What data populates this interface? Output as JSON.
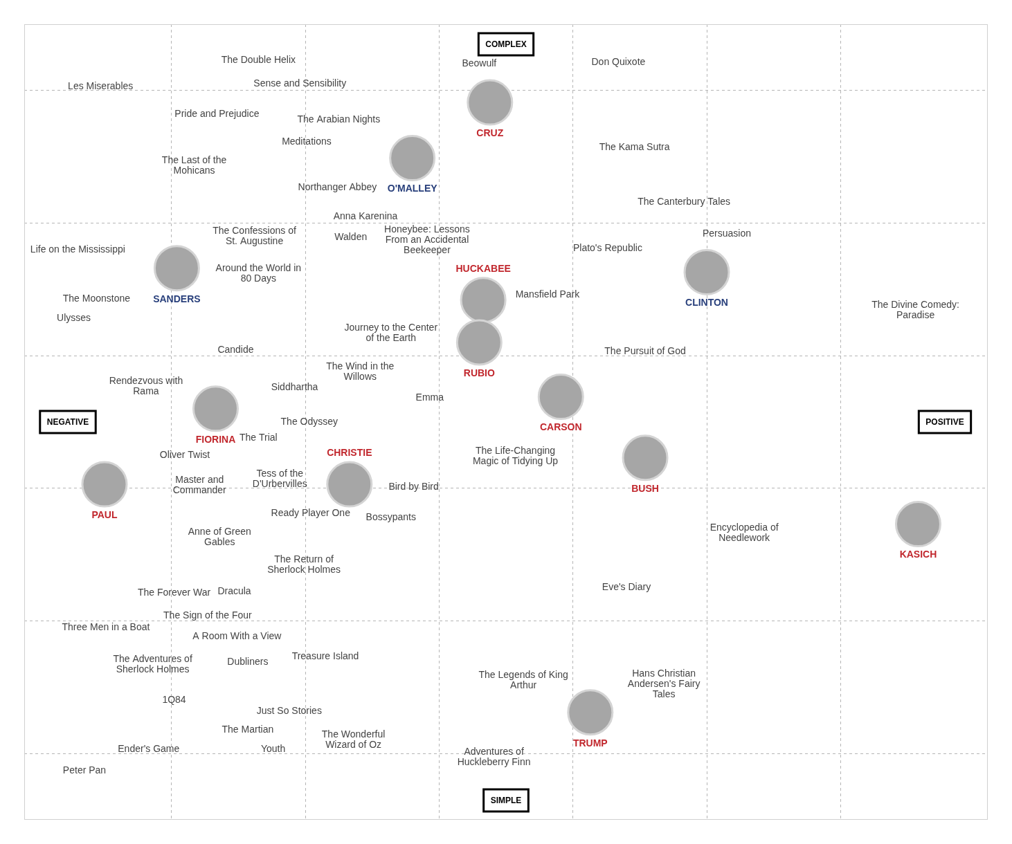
{
  "chart_data": {
    "type": "scatter",
    "xlabel": {
      "low": "NEGATIVE",
      "high": "POSITIVE"
    },
    "ylabel": {
      "low": "SIMPLE",
      "high": "COMPLEX"
    },
    "xlim": [
      -0.1,
      7.1
    ],
    "ylim": [
      0.5,
      6.5
    ],
    "xticks": [
      1,
      2,
      3,
      4,
      5,
      6
    ],
    "yticks": [
      1,
      2,
      3,
      4,
      5,
      6
    ],
    "grid": true,
    "tick_labels": false,
    "series": [
      {
        "color": "#444444",
        "marker": "none",
        "labels": [
          "The Double Helix",
          "Les Miserables",
          "Sense and Sensibility",
          "Pride and Prejudice",
          "The Arabian Nights",
          "Meditations",
          "The Last of the Mohicans",
          "Northanger Abbey",
          "Beowulf",
          "Don Quixote",
          "The Kama Sutra",
          "The Canterbury Tales",
          "Anna Karenina",
          "The Confessions of St. Augustine",
          "Walden",
          "Honeybee: Lessons From an Accidental Beekeeper",
          "Persuasion",
          "Plato's Republic",
          "Life on the Mississippi",
          "Around the World in 80 Days",
          "Mansfield Park",
          "The Moonstone",
          "Ulysses",
          "The Divine Comedy: Paradise",
          "Journey to the Center of the Earth",
          "Candide",
          "The Pursuit of God",
          "The Wind in the Willows",
          "Rendezvous with Rama",
          "Siddhartha",
          "Emma",
          "The Odyssey",
          "The Trial",
          "Oliver Twist",
          "The Life-Changing Magic of Tidying Up",
          "Master and Commander",
          "Tess of the D'Urbervilles",
          "Bird by Bird",
          "Ready Player One",
          "Bossypants",
          "Anne of Green Gables",
          "Encyclopedia of Needlework",
          "The Return of Sherlock Holmes",
          "Eve's Diary",
          "The Forever War",
          "Dracula",
          "The Sign of the Four",
          "Three Men in a Boat",
          "A Room With a View",
          "Treasure Island",
          "The Adventures of Sherlock Holmes",
          "Dubliners",
          "The Legends of King Arthur",
          "Hans Christian Andersen's Fairy Tales",
          "1Q84",
          "Just So Stories",
          "The Martian",
          "The Wonderful Wizard of Oz",
          "Ender's Game",
          "Youth",
          "Adventures of Huckleberry Finn",
          "Peter Pan"
        ],
        "x": [
          1.65,
          0.47,
          1.96,
          1.34,
          2.25,
          2.01,
          1.17,
          2.24,
          3.3,
          4.34,
          4.46,
          4.83,
          2.45,
          1.62,
          2.34,
          2.91,
          5.15,
          4.26,
          0.3,
          1.65,
          3.81,
          0.44,
          0.27,
          6.56,
          2.64,
          1.48,
          4.54,
          2.41,
          0.81,
          1.92,
          2.93,
          2.03,
          1.65,
          1.1,
          3.57,
          1.21,
          1.81,
          2.81,
          2.04,
          2.64,
          1.36,
          5.28,
          1.99,
          4.4,
          1.02,
          1.47,
          1.27,
          0.51,
          1.49,
          2.15,
          0.86,
          1.57,
          3.63,
          4.68,
          1.02,
          1.88,
          1.57,
          2.36,
          0.83,
          1.76,
          3.41,
          0.35
        ],
        "y": [
          6.23,
          6.03,
          6.05,
          5.82,
          5.78,
          5.61,
          5.43,
          5.27,
          6.2,
          6.21,
          5.57,
          5.16,
          5.05,
          4.9,
          4.89,
          4.87,
          4.92,
          4.81,
          4.8,
          4.62,
          4.46,
          4.43,
          4.28,
          4.34,
          4.17,
          4.04,
          4.03,
          3.88,
          3.77,
          3.76,
          3.68,
          3.5,
          3.38,
          3.25,
          3.24,
          3.02,
          3.07,
          3.01,
          2.81,
          2.78,
          2.63,
          2.66,
          2.42,
          2.25,
          2.21,
          2.22,
          2.04,
          1.95,
          1.88,
          1.73,
          1.67,
          1.69,
          1.55,
          1.52,
          1.4,
          1.32,
          1.18,
          1.1,
          1.03,
          1.03,
          0.97,
          0.87
        ]
      },
      {
        "color": "#c1272d",
        "marker": "circle",
        "labels": [
          "CRUZ",
          "HUCKABEE",
          "RUBIO",
          "CARSON",
          "FIORINA",
          "BUSH",
          "PAUL",
          "CHRISTIE",
          "KASICH",
          "TRUMP"
        ],
        "x": [
          3.38,
          3.33,
          3.3,
          3.91,
          1.33,
          4.54,
          0.5,
          2.33,
          6.58,
          4.13
        ],
        "y": [
          5.91,
          4.42,
          4.1,
          3.69,
          3.6,
          3.23,
          3.03,
          3.03,
          2.73,
          1.31
        ]
      },
      {
        "color": "#283f7b",
        "marker": "circle",
        "labels": [
          "O'MALLEY",
          "SANDERS",
          "CLINTON"
        ],
        "x": [
          2.8,
          1.04,
          5.0
        ],
        "y": [
          5.49,
          4.66,
          4.63
        ]
      }
    ]
  }
}
